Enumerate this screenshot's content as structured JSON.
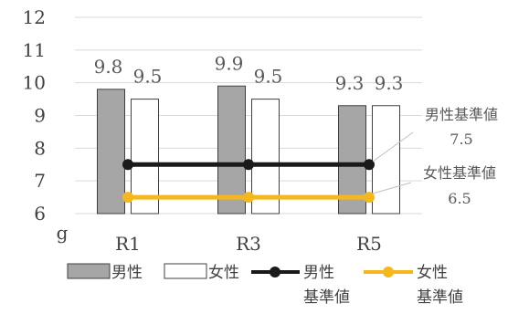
{
  "chart_data": {
    "type": "bar",
    "categories": [
      "R1",
      "R3",
      "R5"
    ],
    "series": [
      {
        "name": "男性",
        "kind": "bar",
        "values": [
          9.8,
          9.9,
          9.3
        ],
        "color": "#a6a6a6",
        "stroke": "#404040"
      },
      {
        "name": "女性",
        "kind": "bar",
        "values": [
          9.5,
          9.5,
          9.3
        ],
        "color": "#ffffff",
        "stroke": "#404040"
      },
      {
        "name": "男性基準値",
        "kind": "line",
        "values": [
          7.5,
          7.5,
          7.5
        ],
        "color": "#1a1a1a"
      },
      {
        "name": "女性基準値",
        "kind": "line",
        "values": [
          6.5,
          6.5,
          6.5
        ],
        "color": "#f5b81c"
      }
    ],
    "data_labels": [
      [
        "9.8",
        "9.9",
        "9.3"
      ],
      [
        "9.5",
        "9.5",
        "9.3"
      ]
    ],
    "ylim": [
      6,
      12
    ],
    "yticks": [
      "6",
      "7",
      "8",
      "9",
      "10",
      "11",
      "12"
    ],
    "unit_label": "g",
    "grid": true,
    "legend_position": "bottom",
    "legend_labels": [
      "男性",
      "女性",
      "男性\n基準値",
      "女性\n基準値"
    ],
    "annotations": [
      {
        "title": "男性基準値",
        "value": "7.5"
      },
      {
        "title": "女性基準値",
        "value": "6.5"
      }
    ]
  }
}
